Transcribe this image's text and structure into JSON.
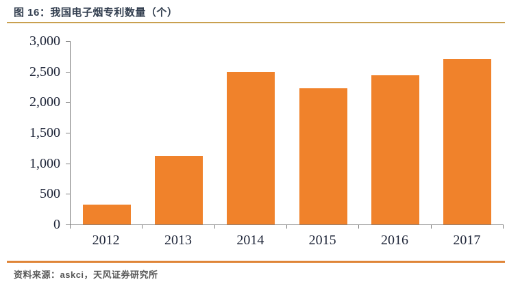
{
  "header": {
    "title": "图 16：我国电子烟专利数量（个）"
  },
  "footer": {
    "source": "资料来源：askci，天风证券研究所"
  },
  "colors": {
    "bar": "#F0822B",
    "title_text": "#333F50",
    "title_rule": "#C9A050",
    "axis_line": "#7F7F7F",
    "tick_label_text": "#1F2639",
    "source_rule": "#DF8538",
    "source_text": "#595959",
    "background": "#FFFFFF"
  },
  "chart_data": {
    "type": "bar",
    "title": "图 16：我国电子烟专利数量（个）",
    "categories": [
      "2012",
      "2013",
      "2014",
      "2015",
      "2016",
      "2017"
    ],
    "values": [
      330,
      1120,
      2500,
      2230,
      2440,
      2710
    ],
    "xlabel": "",
    "ylabel": "",
    "ylim": [
      0,
      3000
    ],
    "ytick_step": 500,
    "ytick_labels": [
      "0",
      "500",
      "1,000",
      "1,500",
      "2,000",
      "2,500",
      "3,000"
    ],
    "grid": false,
    "legend": false,
    "bar_color": "#F0822B"
  }
}
